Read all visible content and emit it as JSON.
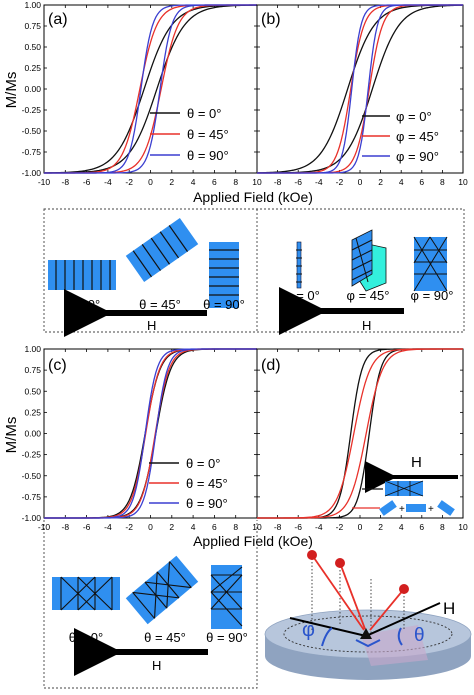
{
  "figure": {
    "y_axis_label": "M/Ms",
    "x_axis_label": "Applied Field (kOe)",
    "x_ticks": [
      "-10",
      "-8",
      "-6",
      "-4",
      "-2",
      "0",
      "2",
      "4",
      "6",
      "8",
      "10"
    ],
    "y_ticks": [
      "1.00",
      "0.75",
      "0.50",
      "0.25",
      "0.00",
      "-0.25",
      "-0.50",
      "-0.75",
      "-1.00"
    ],
    "colors": {
      "black": "#111111",
      "red": "#e8312a",
      "blue": "#3b3fd0",
      "sample_blue": "#2f8ff0",
      "cyan": "#33f0dd"
    }
  },
  "panel_labels": {
    "a": "(a)",
    "b": "(b)",
    "c": "(c)",
    "d": "(d)"
  },
  "legend_a": [
    "θ = 0°",
    "θ = 45°",
    "θ = 90°"
  ],
  "legend_b": [
    "φ = 0°",
    "φ = 45°",
    "φ = 90°"
  ],
  "legend_c": [
    "θ = 0°",
    "θ = 45°",
    "θ = 90°"
  ],
  "schematic_a": {
    "angles": [
      "θ = 0°",
      "θ = 45°",
      "θ = 90°"
    ],
    "field": "H"
  },
  "schematic_b": {
    "angles": [
      "φ = 0°",
      "φ = 45°",
      "φ = 90°"
    ],
    "field": "H"
  },
  "schematic_c": {
    "angles": [
      "θ = 0°",
      "θ = 45°",
      "θ = 90°"
    ],
    "field": "H"
  },
  "panel_d_field": "H",
  "geometry": {
    "field": "H",
    "phi": "φ",
    "theta": "θ"
  },
  "chart_data": [
    {
      "id": "a",
      "type": "line",
      "title": "(a)",
      "xlim": [
        -10,
        10
      ],
      "ylim": [
        -1,
        1
      ],
      "xlabel": "Applied Field (kOe)",
      "ylabel": "M/Ms",
      "series": [
        {
          "name": "θ = 0°",
          "color": "#111111",
          "hc": 0.6,
          "w": 2.6
        },
        {
          "name": "θ = 45°",
          "color": "#e8312a",
          "hc": 1.0,
          "w": 1.6
        },
        {
          "name": "θ = 90°",
          "color": "#3b3fd0",
          "hc": 0.9,
          "w": 1.1
        }
      ]
    },
    {
      "id": "b",
      "type": "line",
      "title": "(b)",
      "xlim": [
        -10,
        10
      ],
      "ylim": [
        -1,
        1
      ],
      "xlabel": "Applied Field (kOe)",
      "ylabel": "",
      "series": [
        {
          "name": "φ = 0°",
          "color": "#111111",
          "hc": 1.2,
          "w": 2.6
        },
        {
          "name": "φ = 45°",
          "color": "#e8312a",
          "hc": 0.9,
          "w": 1.3
        },
        {
          "name": "φ = 90°",
          "color": "#3b3fd0",
          "hc": 0.8,
          "w": 0.9
        }
      ]
    },
    {
      "id": "c",
      "type": "line",
      "title": "(c)",
      "xlim": [
        -10,
        10
      ],
      "ylim": [
        -1,
        1
      ],
      "xlabel": "Applied Field (kOe)",
      "ylabel": "M/Ms",
      "series": [
        {
          "name": "θ = 0°",
          "color": "#111111",
          "hc": 0.5,
          "w": 1.4
        },
        {
          "name": "θ = 45°",
          "color": "#e8312a",
          "hc": 0.45,
          "w": 1.3
        },
        {
          "name": "θ = 90°",
          "color": "#3b3fd0",
          "hc": 0.5,
          "w": 1.1
        }
      ]
    },
    {
      "id": "d",
      "type": "line",
      "title": "(d)",
      "xlim": [
        -10,
        10
      ],
      "ylim": [
        -1,
        1
      ],
      "xlabel": "Applied Field (kOe)",
      "ylabel": "",
      "series": [
        {
          "color": "#111111",
          "hc": 0.9,
          "w": 1.1
        },
        {
          "color": "#e8312a",
          "hc": 0.6,
          "w": 1.6
        }
      ]
    }
  ]
}
